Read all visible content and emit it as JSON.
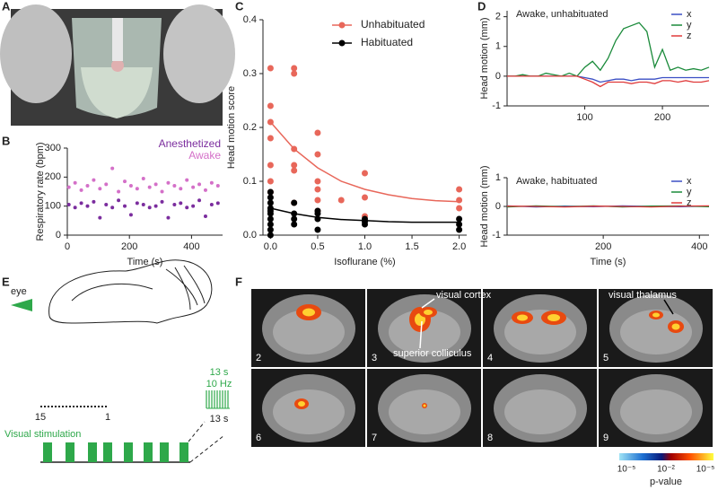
{
  "panel_labels": [
    "A",
    "B",
    "C",
    "D",
    "E",
    "F"
  ],
  "chart_data": [
    {
      "type": "scatter",
      "xlabel": "Time (s)",
      "ylabel": "Respiratory rate (bpm)",
      "xlim": [
        0,
        500
      ],
      "xticks": [
        0,
        200,
        400
      ],
      "ylim": [
        0,
        300
      ],
      "yticks": [
        0,
        100,
        200,
        300
      ],
      "legend": "upper right",
      "series": [
        {
          "name": "Anesthetized",
          "color": "#7b2d9e",
          "x": [
            5,
            25,
            45,
            65,
            85,
            105,
            125,
            145,
            165,
            185,
            205,
            225,
            245,
            265,
            285,
            305,
            325,
            345,
            365,
            385,
            405,
            425,
            445,
            465,
            485
          ],
          "values": [
            105,
            95,
            110,
            100,
            115,
            60,
            105,
            95,
            120,
            100,
            70,
            110,
            105,
            95,
            100,
            115,
            60,
            105,
            110,
            95,
            100,
            120,
            65,
            105,
            110
          ]
        },
        {
          "name": "Awake",
          "color": "#d470c8",
          "x": [
            5,
            25,
            45,
            65,
            85,
            105,
            125,
            145,
            165,
            185,
            205,
            225,
            245,
            265,
            285,
            305,
            325,
            345,
            365,
            385,
            405,
            425,
            445,
            465,
            485
          ],
          "values": [
            165,
            180,
            155,
            170,
            190,
            160,
            175,
            230,
            150,
            185,
            170,
            160,
            195,
            165,
            175,
            150,
            180,
            170,
            160,
            190,
            165,
            175,
            155,
            180,
            170
          ]
        }
      ]
    },
    {
      "type": "scatter",
      "xlabel": "Isoflurane (%)",
      "ylabel": "Head motion score",
      "xlim": [
        -0.08,
        2.08
      ],
      "xticks": [
        {
          "value": 0,
          "label": "0.0"
        },
        {
          "value": 0.5,
          "label": "0.5"
        },
        {
          "value": 1,
          "label": "1.0"
        },
        {
          "value": 1.5,
          "label": "1.5"
        },
        {
          "value": 2,
          "label": "2.0"
        }
      ],
      "ylim": [
        0,
        0.4
      ],
      "yticks": [
        {
          "value": 0,
          "label": "0.0"
        },
        0.1,
        0.2,
        0.3,
        0.4
      ],
      "legend": "upper right",
      "series": [
        {
          "name": "Unhabituated",
          "color": "#e8675a",
          "x": [
            0,
            0,
            0,
            0,
            0,
            0,
            0,
            0.25,
            0.25,
            0.25,
            0.25,
            0.25,
            0.25,
            0.5,
            0.5,
            0.5,
            0.5,
            0.5,
            0.5,
            0.75,
            1,
            1,
            1,
            2,
            2,
            2
          ],
          "values": [
            0.31,
            0.24,
            0.21,
            0.18,
            0.13,
            0.1,
            0.08,
            0.31,
            0.3,
            0.16,
            0.13,
            0.12,
            0.06,
            0.19,
            0.15,
            0.1,
            0.085,
            0.065,
            0.045,
            0.065,
            0.115,
            0.07,
            0.035,
            0.085,
            0.065,
            0.05
          ],
          "fit_x": [
            0,
            0.25,
            0.5,
            0.75,
            1,
            1.25,
            1.5,
            1.75,
            2
          ],
          "fit_values": [
            0.21,
            0.16,
            0.125,
            0.1,
            0.085,
            0.075,
            0.068,
            0.064,
            0.062
          ]
        },
        {
          "name": "Habituated",
          "color": "#000000",
          "x": [
            0,
            0,
            0,
            0,
            0,
            0,
            0,
            0,
            0,
            0,
            0.25,
            0.25,
            0.25,
            0.25,
            0.5,
            0.5,
            0.5,
            0.5,
            1,
            1,
            1,
            2,
            2,
            2
          ],
          "values": [
            0.08,
            0.07,
            0.06,
            0.05,
            0.045,
            0.04,
            0.03,
            0.02,
            0.01,
            0,
            0.06,
            0.04,
            0.03,
            0.02,
            0.045,
            0.04,
            0.03,
            0.01,
            0.03,
            0.025,
            0.02,
            0.03,
            0.02,
            0.01
          ],
          "fit_x": [
            0,
            0.25,
            0.5,
            0.75,
            1,
            1.25,
            1.5,
            1.75,
            2
          ],
          "fit_values": [
            0.05,
            0.04,
            0.033,
            0.029,
            0.027,
            0.025,
            0.024,
            0.024,
            0.024
          ]
        }
      ]
    },
    {
      "type": "line",
      "title": "Awake, unhabituated",
      "ylabel": "Head motion (mm)",
      "xlim": [
        0,
        260
      ],
      "xticks": [
        100,
        200
      ],
      "ylim": [
        -1,
        2.2
      ],
      "yticks": [
        -1,
        0,
        1,
        2
      ],
      "legend": "upper right",
      "x": [
        0,
        10,
        20,
        30,
        40,
        50,
        60,
        70,
        80,
        90,
        100,
        110,
        120,
        130,
        140,
        150,
        160,
        170,
        180,
        190,
        200,
        210,
        220,
        230,
        240,
        250,
        260
      ],
      "series": [
        {
          "name": "x",
          "color": "#3b4fc4",
          "values": [
            0,
            0,
            0,
            0,
            0,
            0,
            0,
            0,
            0,
            0,
            -0.05,
            -0.1,
            -0.2,
            -0.15,
            -0.1,
            -0.1,
            -0.15,
            -0.1,
            -0.1,
            -0.1,
            -0.05,
            -0.05,
            -0.05,
            -0.05,
            -0.05,
            -0.05,
            -0.05
          ]
        },
        {
          "name": "y",
          "color": "#1a8a3a",
          "values": [
            0,
            0,
            0.05,
            0,
            0,
            0.1,
            0.05,
            0,
            0.1,
            0,
            0.3,
            0.5,
            0.2,
            0.6,
            1.2,
            1.6,
            1.7,
            1.8,
            1.5,
            0.3,
            0.9,
            0.2,
            0.3,
            0.2,
            0.25,
            0.2,
            0.3
          ]
        },
        {
          "name": "z",
          "color": "#e03a3a",
          "values": [
            0,
            0,
            0,
            0,
            0,
            0,
            0,
            0,
            0,
            0,
            -0.1,
            -0.2,
            -0.35,
            -0.2,
            -0.2,
            -0.2,
            -0.25,
            -0.2,
            -0.2,
            -0.25,
            -0.15,
            -0.15,
            -0.2,
            -0.15,
            -0.2,
            -0.2,
            -0.15
          ]
        }
      ]
    },
    {
      "type": "line",
      "title": "Awake, habituated",
      "xlabel": "Time (s)",
      "ylabel": "Head motion (mm)",
      "xlim": [
        0,
        420
      ],
      "xticks": [
        200,
        400
      ],
      "ylim": [
        -1,
        1
      ],
      "yticks": [
        -1,
        0,
        1
      ],
      "legend": "upper right",
      "x": [
        0,
        60,
        120,
        180,
        240,
        300,
        360,
        420
      ],
      "series": [
        {
          "name": "x",
          "color": "#3b4fc4",
          "values": [
            0.02,
            -0.02,
            0.01,
            -0.01,
            0.02,
            0,
            -0.01,
            0.01
          ]
        },
        {
          "name": "y",
          "color": "#1a8a3a",
          "values": [
            -0.02,
            0.02,
            -0.01,
            0.02,
            -0.02,
            0.01,
            0.02,
            -0.01
          ]
        },
        {
          "name": "z",
          "color": "#e03a3a",
          "values": [
            0.01,
            0,
            -0.02,
            0.01,
            0,
            -0.02,
            0.01,
            0.02
          ]
        }
      ]
    }
  ],
  "panel_e": {
    "eye": "eye",
    "scale_left": "15",
    "scale_right": "1",
    "train_top": "13 s",
    "train_rate": "10 Hz",
    "train_bottom": "13 s",
    "stimulation": "Visual stimulation"
  },
  "panel_f": {
    "slices": [
      "2",
      "3",
      "4",
      "5",
      "6",
      "7",
      "8",
      "9"
    ],
    "annotations": [
      "visual cortex",
      "superior colliculus",
      "visual thalamus"
    ],
    "colorbar_ticks": [
      "10⁻⁵",
      "10⁻²",
      "10⁻⁵"
    ],
    "colorbar_label": "p-value"
  }
}
